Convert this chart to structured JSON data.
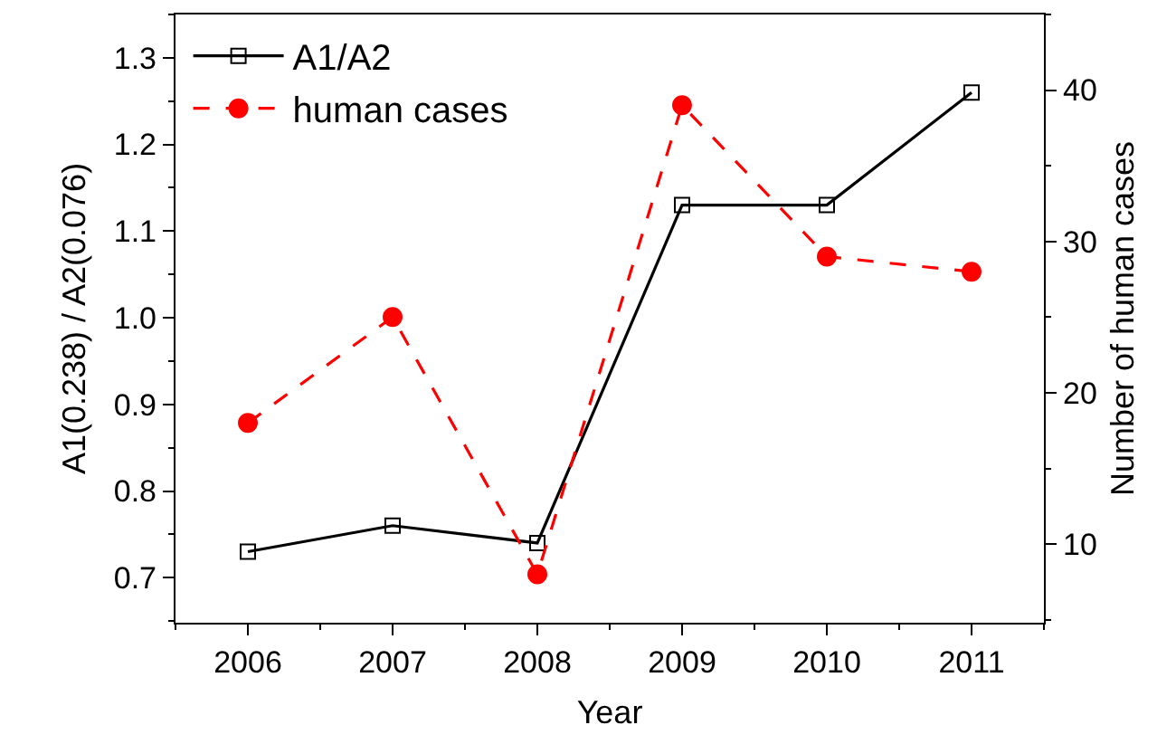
{
  "chart_data": {
    "type": "line",
    "x": [
      2006,
      2007,
      2008,
      2009,
      2010,
      2011
    ],
    "xlabel": "Year",
    "ylabel": "A1(0.238) / A2(0.076)",
    "y2label": "Number of human cases",
    "xlim": [
      2005.5,
      2011.5
    ],
    "xticks": [
      2006,
      2007,
      2008,
      2009,
      2010,
      2011
    ],
    "ylim": [
      0.648,
      1.35
    ],
    "yticks": [
      {
        "value": 0.7,
        "label": "0.7"
      },
      {
        "value": 0.8,
        "label": "0.8"
      },
      {
        "value": 0.9,
        "label": "0.9"
      },
      {
        "value": 1.0,
        "label": "1.0"
      },
      {
        "value": 1.1,
        "label": "1.1"
      },
      {
        "value": 1.2,
        "label": "1.2"
      },
      {
        "value": 1.3,
        "label": "1.3"
      }
    ],
    "y2lim": [
      4.8,
      45
    ],
    "y2ticks": [
      10,
      20,
      30,
      40
    ],
    "legend": "top left",
    "series": [
      {
        "name": "A1/A2",
        "color": "#000000",
        "values": [
          0.73,
          0.76,
          0.74,
          1.13,
          1.13,
          1.26
        ],
        "marker": "square",
        "line_style": "solid"
      },
      {
        "name": "human cases",
        "color": "#ff0000",
        "values": [
          18,
          25,
          8,
          39,
          29,
          28
        ],
        "marker": "circle",
        "line_style": "dashed",
        "axis": "y2"
      }
    ]
  }
}
